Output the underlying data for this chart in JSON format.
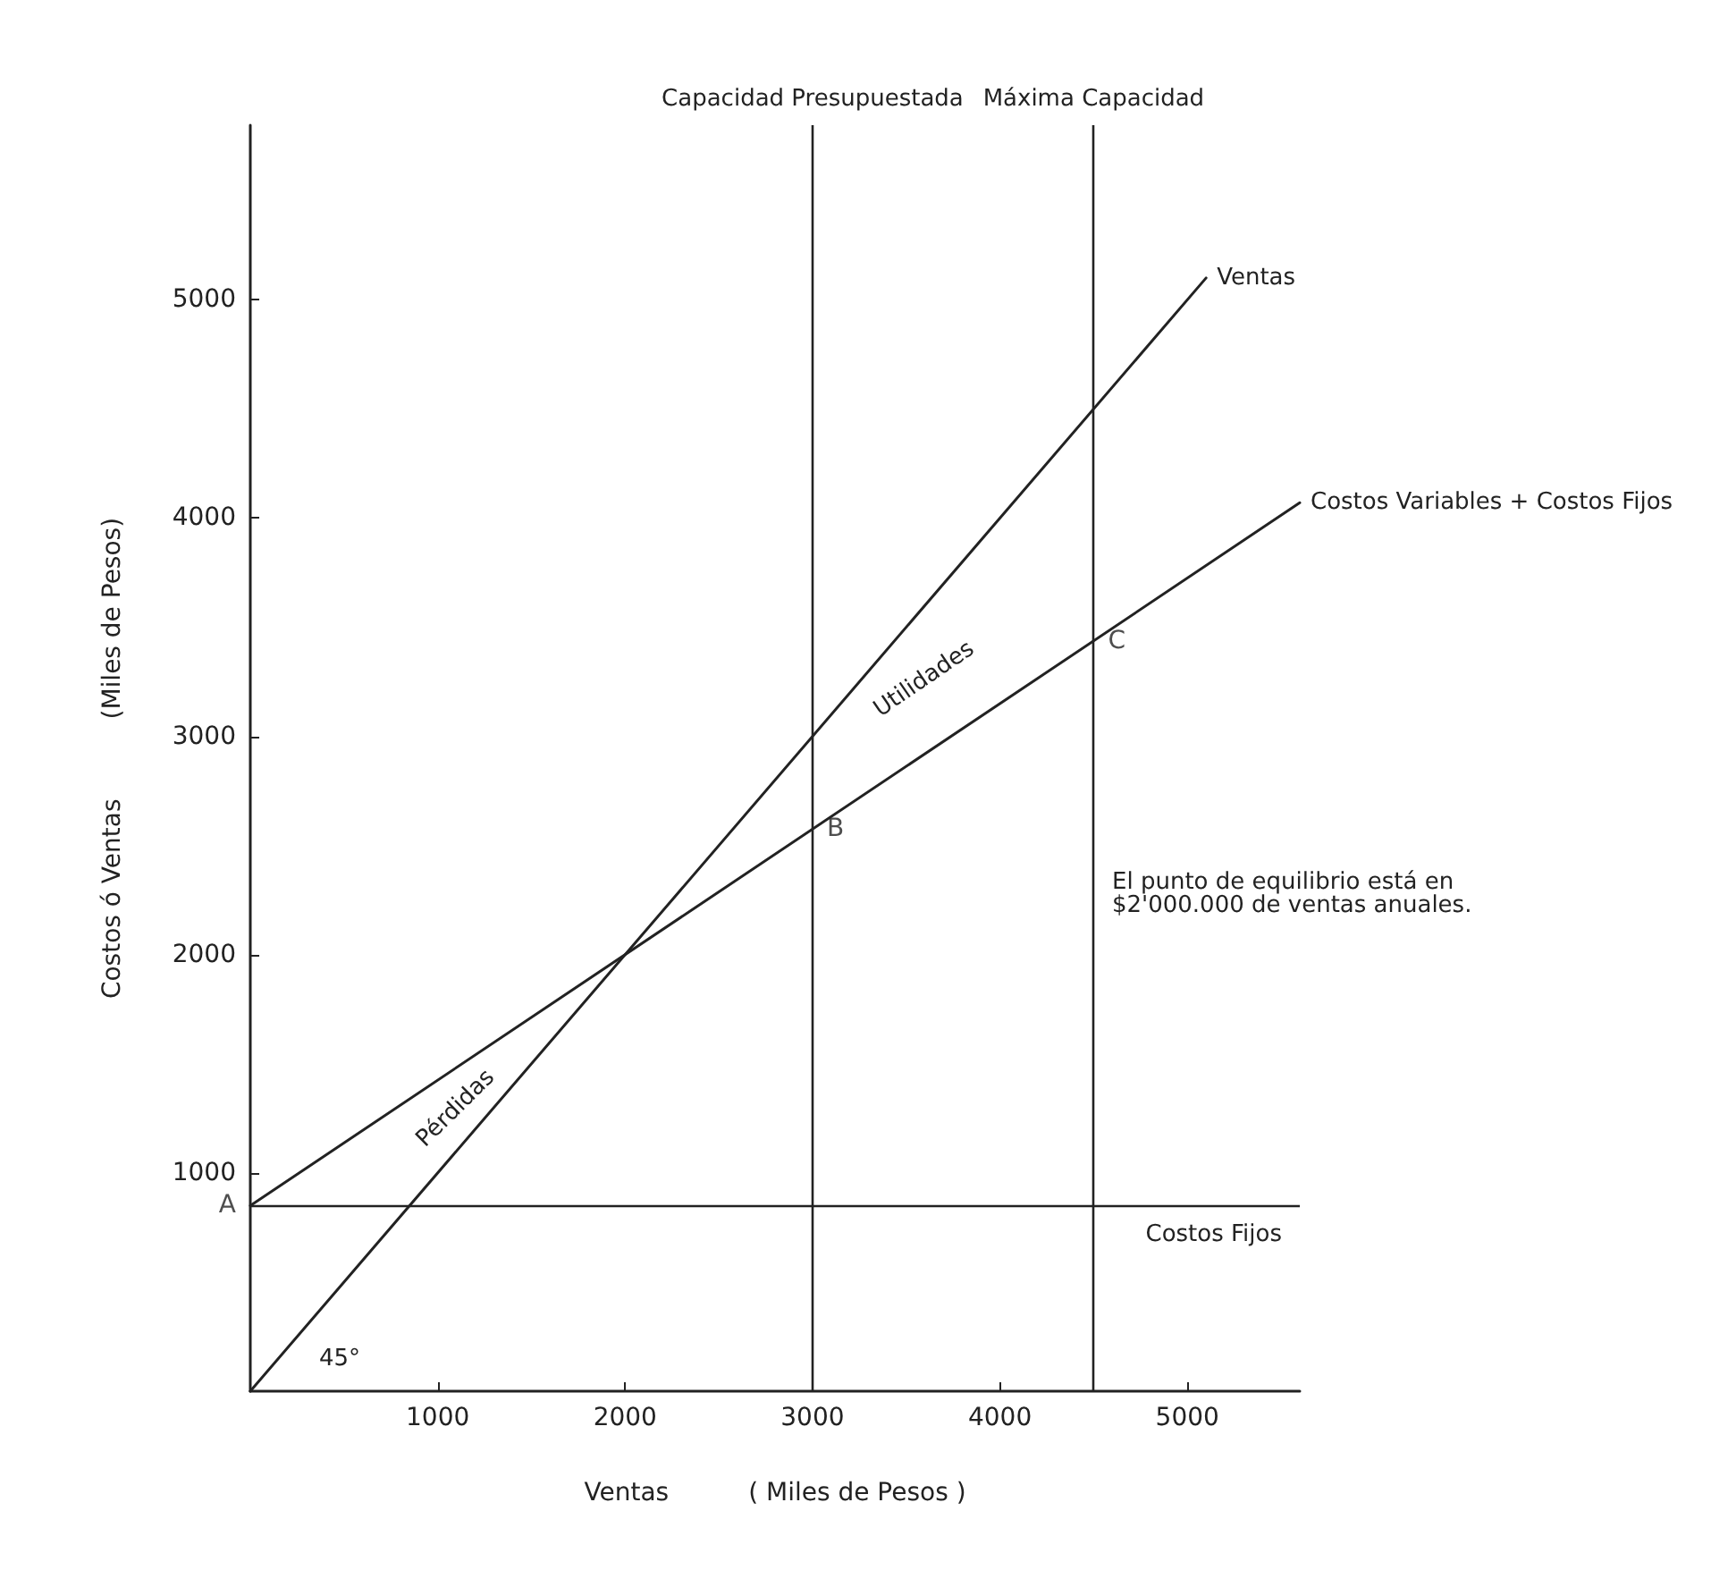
{
  "chart_data": {
    "type": "line",
    "xlabel": "Ventas          ( Miles de Pesos )",
    "ylabel": "Costos ó Ventas          (Miles de Pesos)",
    "xlim": [
      0,
      5600
    ],
    "ylim": [
      0,
      5800
    ],
    "xticks": [
      1000,
      2000,
      3000,
      4000,
      5000
    ],
    "yticks": [
      1000,
      2000,
      3000,
      4000,
      5000
    ],
    "grid": false,
    "legend": false,
    "marker": "none",
    "line_style": "solid",
    "series": [
      {
        "name": "Ventas",
        "color": "#222222",
        "x": [
          0,
          5100
        ],
        "values": [
          0,
          5100
        ]
      },
      {
        "name": "Costos Variables + Costos Fijos",
        "color": "#222222",
        "x": [
          0,
          5600
        ],
        "values": [
          850,
          4070
        ]
      }
    ],
    "ref_lines": [
      {
        "axis": "x",
        "value": 3000,
        "label": "Capacidad Presupuestada"
      },
      {
        "axis": "x",
        "value": 4500,
        "label": "Máxima Capacidad"
      },
      {
        "axis": "y",
        "value": 850,
        "label": "Costos Fijos"
      }
    ],
    "annotations": [
      {
        "text": "A",
        "x": 0,
        "y": 850
      },
      {
        "text": "B",
        "x": 3000,
        "y": 2575
      },
      {
        "text": "C",
        "x": 4500,
        "y": 3437
      },
      "Utilidades",
      "Pérdidas",
      "45°",
      "El punto de equilibrio está en $2'000.000 de ventas anuales."
    ]
  }
}
